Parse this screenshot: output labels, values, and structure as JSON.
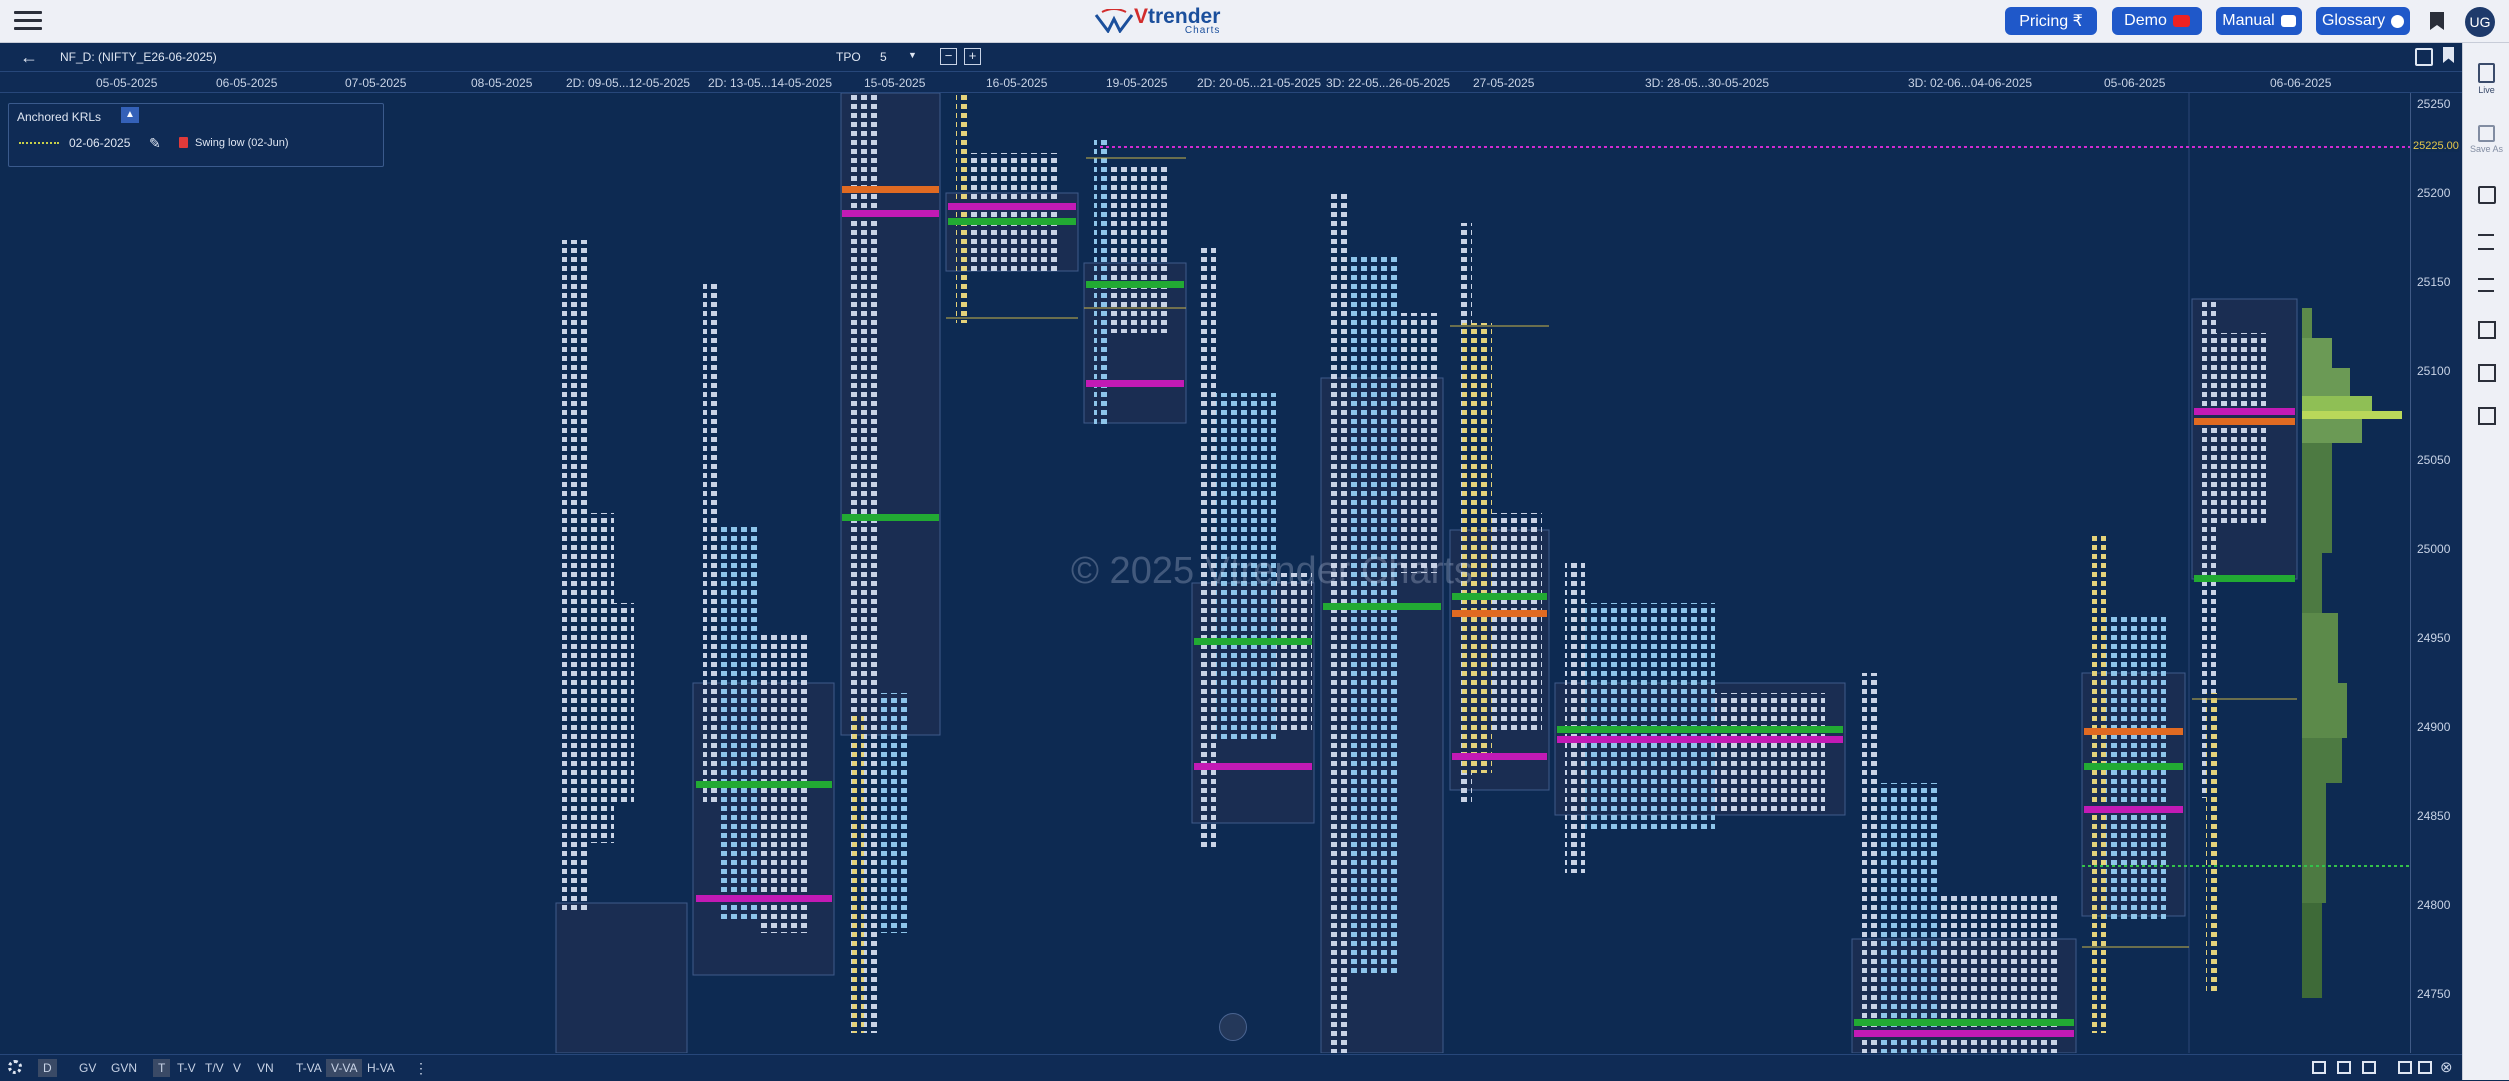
{
  "topbar": {
    "logo_brand_v": "V",
    "logo_brand_rest": "trender",
    "logo_sub": "Charts",
    "buttons": [
      {
        "label": "Pricing ₹",
        "icon": "rupee-icon"
      },
      {
        "label": "Demo",
        "icon": "youtube-icon"
      },
      {
        "label": "Manual",
        "icon": "book-icon"
      },
      {
        "label": "Glossary",
        "icon": "info-icon"
      }
    ],
    "avatar": "UG"
  },
  "toolbar": {
    "symbol": "NF_D: (NIFTY_E26-06-2025)",
    "tpo_label": "TPO",
    "tpo_value": "5"
  },
  "dates": [
    "05-05-2025",
    "06-05-2025",
    "07-05-2025",
    "08-05-2025",
    "2D: 09-05...12-05-2025",
    "2D: 13-05...14-05-2025",
    "15-05-2025",
    "16-05-2025",
    "19-05-2025",
    "2D: 20-05...21-05-2025",
    "3D: 22-05...26-05-2025",
    "27-05-2025",
    "3D: 28-05...30-05-2025",
    "3D: 02-06...04-06-2025",
    "05-06-2025",
    "06-06-2025"
  ],
  "price_axis": {
    "ticks": [
      "25250",
      "25200",
      "25150",
      "25100",
      "25050",
      "25000",
      "24950",
      "24900",
      "24850",
      "24800",
      "24750"
    ],
    "marker": "25225.00"
  },
  "anchored_krls": {
    "title": "Anchored KRLs",
    "items": [
      {
        "date": "02-06-2025",
        "label": "Swing low (02-Jun)"
      }
    ]
  },
  "watermark": "© 2025 Vtrender Charts",
  "right_panel": {
    "live": "Live",
    "save_as": "Save As"
  },
  "bottom": {
    "items": [
      "D",
      "GV",
      "GVN",
      "T",
      "T-V",
      "T/V",
      "V",
      "VN",
      "T-VA",
      "V-VA",
      "H-VA"
    ]
  },
  "colors": {
    "bg": "#0d2a52",
    "value_area": "#1a2d52",
    "poc": "#22aa33",
    "vwap": "#c21ab5",
    "ib": "#ff9d2a",
    "accent": "#1f58c9"
  }
}
